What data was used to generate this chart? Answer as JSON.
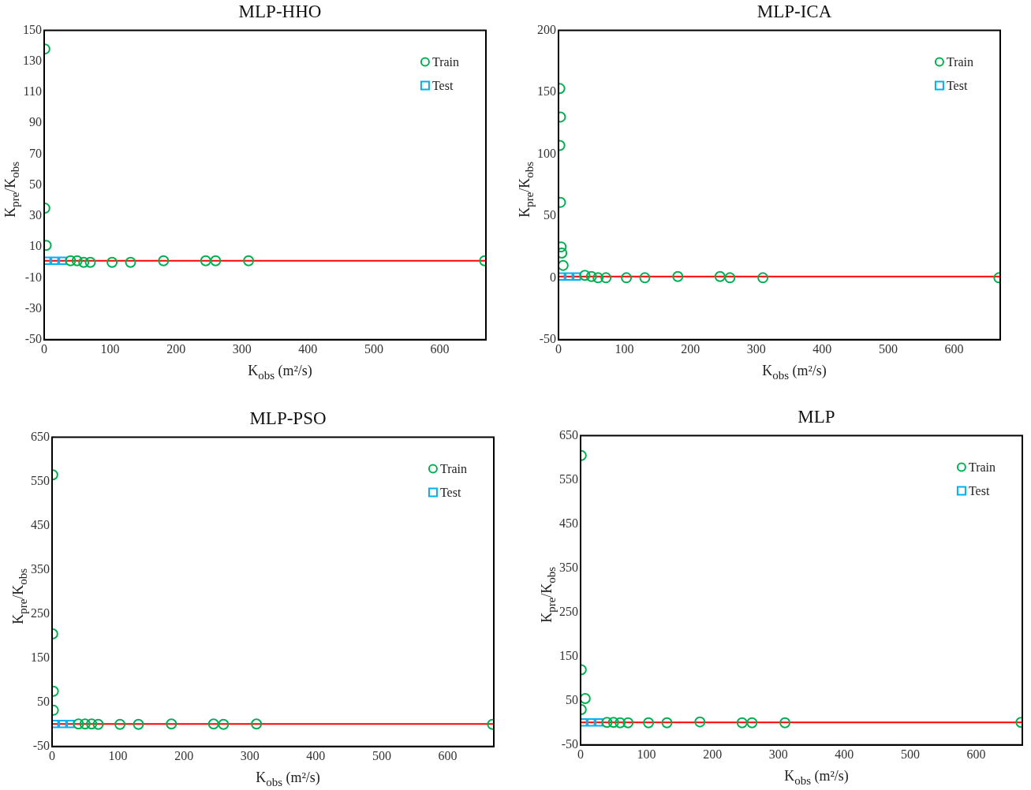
{
  "chart_data": [
    {
      "type": "scatter",
      "title": "MLP-HHO",
      "xlabel": "K$_{obs}$ (m²/s)",
      "ylabel": "K$_{pre}$/K$_{obs}$",
      "xlim": [
        0,
        670
      ],
      "xticks": [
        0,
        100,
        200,
        300,
        400,
        500,
        600
      ],
      "ylim": [
        -50,
        150
      ],
      "yticks": [
        -50,
        -30,
        -10,
        10,
        30,
        50,
        70,
        90,
        110,
        130,
        150
      ],
      "grid": false,
      "legend": "top right",
      "ref_lines": [
        {
          "axis": "y",
          "value": 1,
          "color": "#ff0000"
        }
      ],
      "series": [
        {
          "name": "Train",
          "color": "#00b050",
          "marker": "circle",
          "x": [
            1,
            1,
            3,
            40,
            50,
            60,
            70,
            103,
            131,
            181,
            245,
            260,
            310,
            668
          ],
          "values": [
            138,
            35,
            11,
            1,
            1,
            0,
            0,
            0,
            0,
            1,
            1,
            1,
            1,
            1
          ]
        },
        {
          "name": "Test",
          "color": "#00b0f0",
          "marker": "square",
          "x": [
            4,
            16,
            28
          ],
          "values": [
            1,
            1,
            1
          ]
        }
      ]
    },
    {
      "type": "scatter",
      "title": "MLP-ICA",
      "xlabel": "K$_{obs}$ (m²/s)",
      "ylabel": "K$_{pre}$/K$_{obs}$",
      "xlim": [
        0,
        670
      ],
      "xticks": [
        0,
        100,
        200,
        300,
        400,
        500,
        600
      ],
      "ylim": [
        -50,
        200
      ],
      "yticks": [
        -50,
        0,
        50,
        100,
        150,
        200
      ],
      "grid": false,
      "legend": "top right",
      "ref_lines": [
        {
          "axis": "y",
          "value": 1,
          "color": "#ff0000"
        }
      ],
      "series": [
        {
          "name": "Train",
          "color": "#00b050",
          "marker": "circle",
          "x": [
            2,
            3,
            2,
            3,
            4,
            5,
            7,
            40,
            50,
            60,
            72,
            103,
            131,
            181,
            245,
            260,
            310,
            668
          ],
          "values": [
            153,
            130,
            107,
            61,
            25,
            20,
            10,
            2,
            1,
            0,
            0,
            0,
            0,
            1,
            1,
            0,
            0,
            0
          ]
        },
        {
          "name": "Test",
          "color": "#00b0f0",
          "marker": "square",
          "x": [
            4,
            16,
            28
          ],
          "values": [
            1,
            1,
            1
          ]
        }
      ]
    },
    {
      "type": "scatter",
      "title": "MLP-PSO",
      "xlabel": "K$_{obs}$ (m²/s)",
      "ylabel": "K$_{pre}$/K$_{obs}$",
      "xlim": [
        0,
        670
      ],
      "xticks": [
        0,
        100,
        200,
        300,
        400,
        500,
        600
      ],
      "ylim": [
        -50,
        650
      ],
      "yticks": [
        -50,
        50,
        150,
        250,
        350,
        450,
        550,
        650
      ],
      "grid": false,
      "legend": "top right",
      "ref_lines": [
        {
          "axis": "y",
          "value": 1,
          "color": "#ff0000"
        }
      ],
      "series": [
        {
          "name": "Train",
          "color": "#00b050",
          "marker": "circle",
          "x": [
            1,
            1,
            2,
            2,
            40,
            50,
            60,
            70,
            103,
            131,
            181,
            245,
            260,
            310,
            668
          ],
          "values": [
            565,
            205,
            75,
            32,
            1,
            1,
            1,
            0,
            0,
            0,
            1,
            1,
            0,
            1,
            0
          ]
        },
        {
          "name": "Test",
          "color": "#00b0f0",
          "marker": "square",
          "x": [
            4,
            16,
            28
          ],
          "values": [
            1,
            1,
            1
          ]
        }
      ]
    },
    {
      "type": "scatter",
      "title": "MLP",
      "xlabel": "K$_{obs}$ (m²/s)",
      "ylabel": "K$_{pre}$/K$_{obs}$",
      "xlim": [
        0,
        670
      ],
      "xticks": [
        0,
        100,
        200,
        300,
        400,
        500,
        600
      ],
      "ylim": [
        -50,
        650
      ],
      "yticks": [
        -50,
        50,
        150,
        250,
        350,
        450,
        550,
        650
      ],
      "grid": false,
      "legend": "top right",
      "ref_lines": [
        {
          "axis": "y",
          "value": 1,
          "color": "#ff0000"
        }
      ],
      "series": [
        {
          "name": "Train",
          "color": "#00b050",
          "marker": "circle",
          "x": [
            1,
            1,
            7,
            1,
            40,
            50,
            60,
            72,
            103,
            131,
            181,
            245,
            260,
            310,
            668
          ],
          "values": [
            605,
            120,
            55,
            30,
            1,
            1,
            0,
            0,
            0,
            0,
            2,
            0,
            0,
            0,
            1
          ]
        },
        {
          "name": "Test",
          "color": "#00b0f0",
          "marker": "square",
          "x": [
            4,
            16,
            28
          ],
          "values": [
            1,
            1,
            1
          ]
        }
      ]
    }
  ]
}
